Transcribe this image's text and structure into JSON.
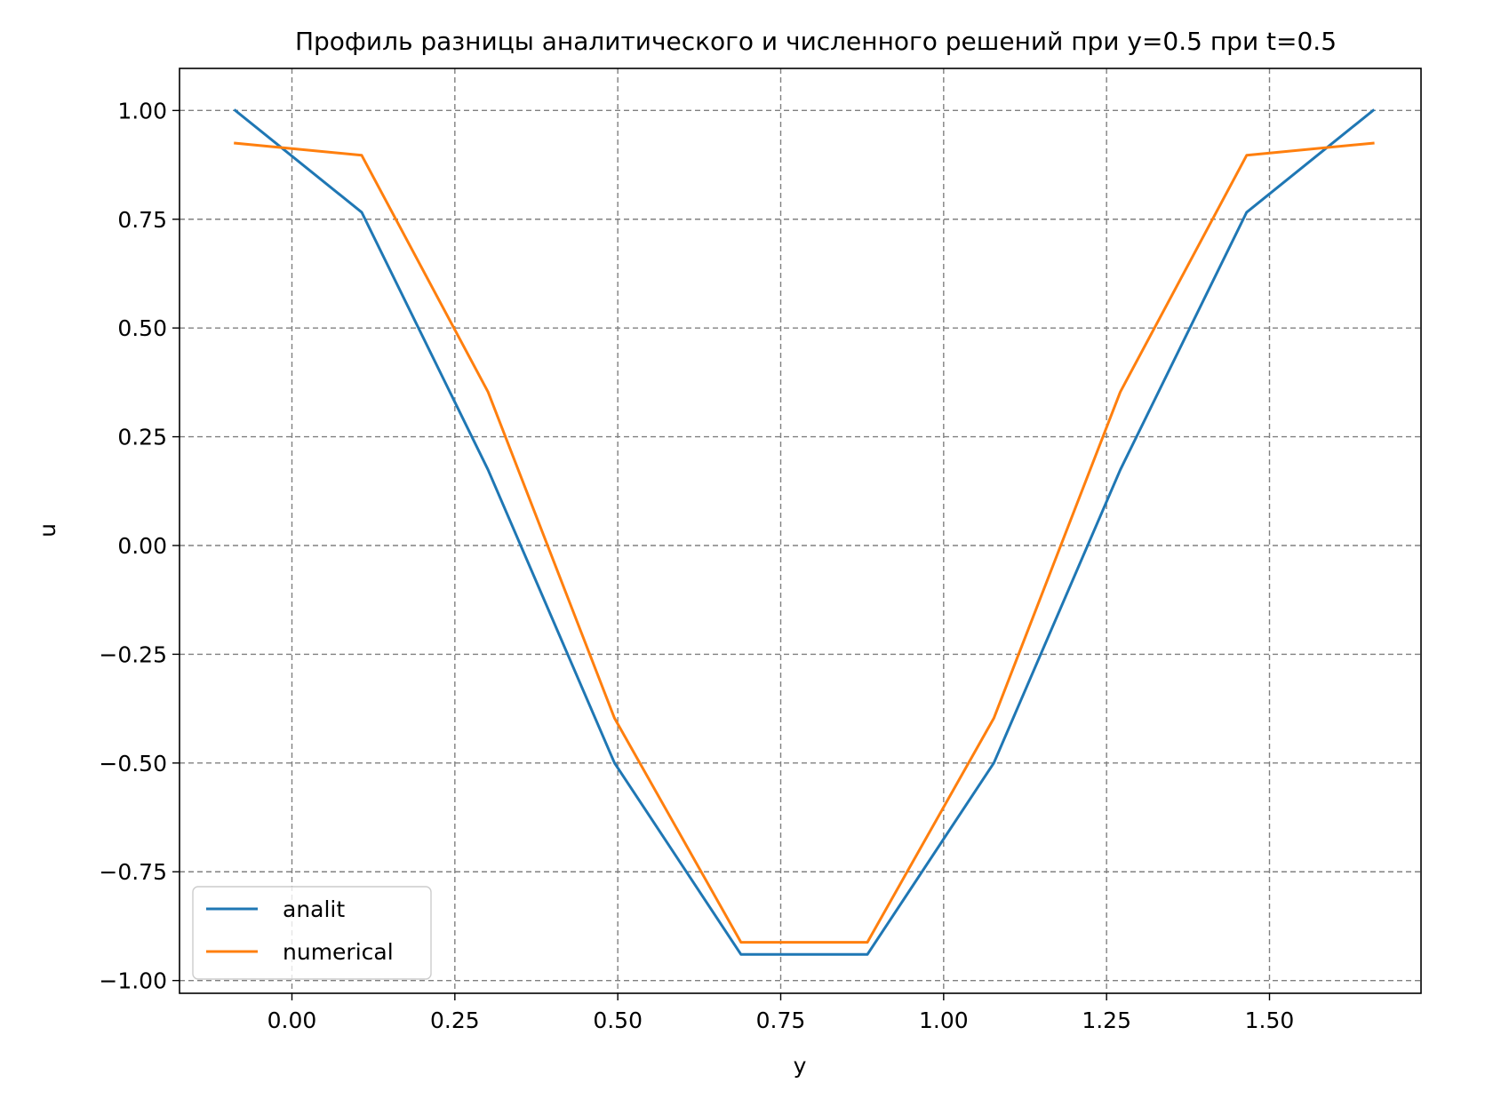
{
  "chart_data": {
    "type": "line",
    "title": "Профиль разницы аналитического и численного решений при y=0.5  при t=0.5",
    "xlabel": "y",
    "ylabel": "u",
    "xlim": [
      -0.1725,
      1.7325
    ],
    "ylim": [
      -1.0293,
      1.0967
    ],
    "xticks": [
      0.0,
      0.25,
      0.5,
      0.75,
      1.0,
      1.25,
      1.5
    ],
    "xtick_labels": [
      "0.00",
      "0.25",
      "0.50",
      "0.75",
      "1.00",
      "1.25",
      "1.50"
    ],
    "yticks": [
      1.0,
      0.75,
      0.5,
      0.25,
      0.0,
      -0.25,
      -0.5,
      -0.75,
      -1.0
    ],
    "ytick_labels": [
      "1.00",
      "0.75",
      "0.50",
      "0.25",
      "0.00",
      "−0.25",
      "−0.50",
      "−0.75",
      "−1.00"
    ],
    "grid": true,
    "legend_position": "lower-left",
    "x": [
      -0.087,
      0.107,
      0.301,
      0.495,
      0.689,
      0.883,
      1.077,
      1.271,
      1.465,
      1.659
    ],
    "series": [
      {
        "name": "analit",
        "color": "#1f77b4",
        "values": [
          1.0,
          0.766,
          0.174,
          -0.5,
          -0.94,
          -0.94,
          -0.5,
          0.174,
          0.766,
          1.0
        ]
      },
      {
        "name": "numerical",
        "color": "#ff7f0e",
        "values": [
          0.925,
          0.897,
          0.353,
          -0.397,
          -0.912,
          -0.912,
          -0.397,
          0.353,
          0.897,
          0.925
        ]
      }
    ]
  }
}
